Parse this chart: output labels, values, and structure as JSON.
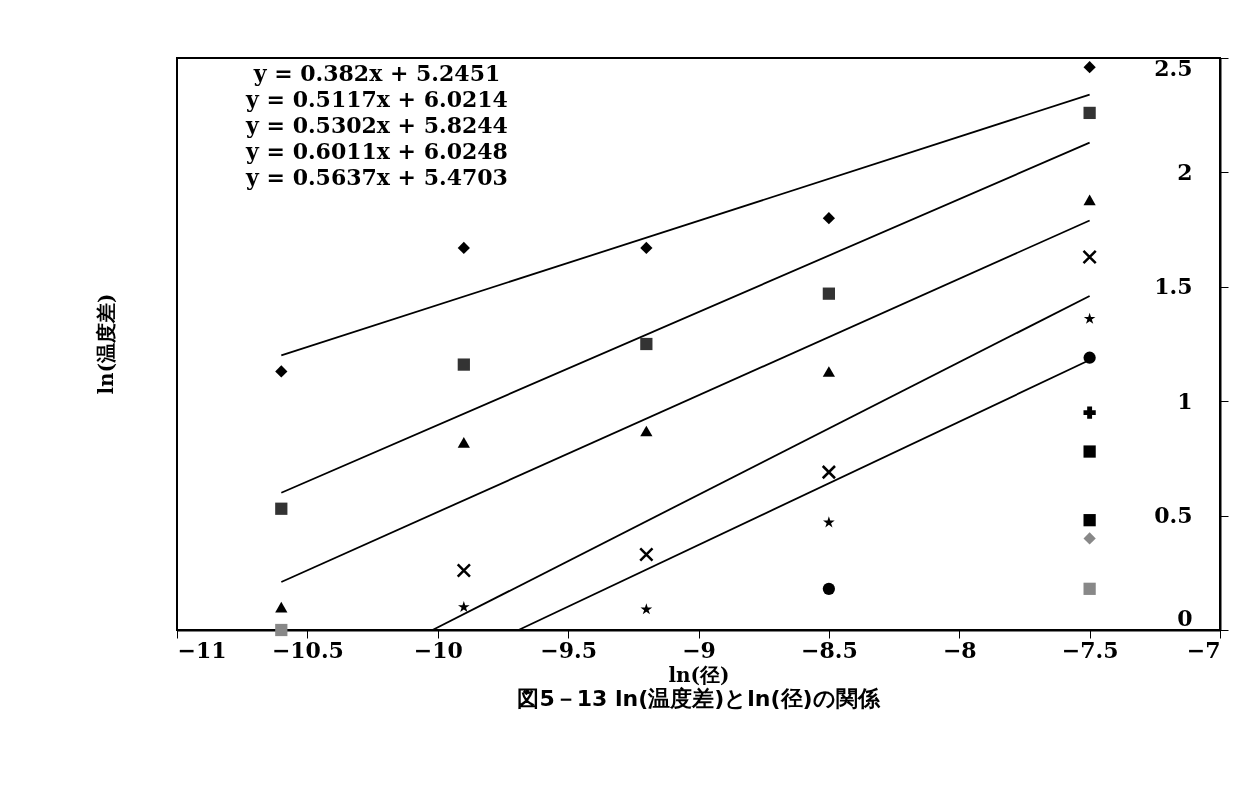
{
  "chart_data": {
    "type": "scatter",
    "title": "図5－13 ln(温度差)とln(径)の関係",
    "xlabel": "ln(径)",
    "ylabel": "ln(温度差)",
    "xlim": [
      -11,
      -7
    ],
    "xticks": [
      -11,
      -10.5,
      -10,
      -9.5,
      -9,
      -8.5,
      -8,
      -7.5,
      -7
    ],
    "ylim": [
      0,
      2.5
    ],
    "yticks": [
      0,
      0.5,
      1,
      1.5,
      2,
      2.5
    ],
    "grid": false,
    "annotations": [
      "y = 0.382x + 5.2451",
      "y = 0.5117x + 6.0214",
      "y = 0.5302x + 5.8244",
      "y = 0.6011x + 6.0248",
      "y = 0.5637x + 5.4703"
    ],
    "series": [
      {
        "type": "line",
        "color": "#000000",
        "x": [
          -10.6,
          -7.5
        ],
        "values": [
          1.2,
          2.34
        ]
      },
      {
        "type": "line",
        "color": "#000000",
        "x": [
          -10.6,
          -7.5
        ],
        "values": [
          0.6,
          2.13
        ]
      },
      {
        "type": "line",
        "color": "#000000",
        "x": [
          -10.6,
          -7.5
        ],
        "values": [
          0.21,
          1.79
        ]
      },
      {
        "type": "line",
        "color": "#000000",
        "x": [
          -10.02,
          -7.5
        ],
        "values": [
          0,
          1.46
        ]
      },
      {
        "type": "line",
        "color": "#000000",
        "x": [
          -9.69,
          -7.5
        ],
        "values": [
          0,
          1.18
        ]
      },
      {
        "marker": "diamond",
        "color": "#000000",
        "x": [
          -10.6,
          -9.9,
          -9.2,
          -8.5,
          -7.5
        ],
        "values": [
          1.13,
          1.67,
          1.67,
          1.8,
          2.46
        ]
      },
      {
        "marker": "square",
        "color": "#333333",
        "x": [
          -10.6,
          -9.9,
          -9.2,
          -8.5,
          -7.5
        ],
        "values": [
          0.53,
          1.16,
          1.25,
          1.47,
          2.26
        ]
      },
      {
        "marker": "triangle",
        "color": "#000000",
        "x": [
          -10.6,
          -9.9,
          -9.2,
          -8.5,
          -7.5
        ],
        "values": [
          0.1,
          0.82,
          0.87,
          1.13,
          1.88
        ]
      },
      {
        "marker": "x",
        "color": "#000000",
        "x": [
          -9.9,
          -9.2,
          -8.5,
          -7.5
        ],
        "values": [
          0.26,
          0.33,
          0.69,
          1.63
        ]
      },
      {
        "marker": "star",
        "color": "#000000",
        "x": [
          -9.9,
          -9.2,
          -8.5,
          -7.5
        ],
        "values": [
          0.1,
          0.09,
          0.47,
          1.36
        ]
      },
      {
        "marker": "circle",
        "color": "#000000",
        "x": [
          -8.5,
          -7.5
        ],
        "values": [
          0.18,
          1.19
        ]
      },
      {
        "marker": "cross",
        "color": "#000000",
        "x": [
          -7.5
        ],
        "values": [
          0.95
        ]
      },
      {
        "marker": "square",
        "color": "#000000",
        "x": [
          -7.5
        ],
        "values": [
          0.78
        ]
      },
      {
        "marker": "square",
        "color": "#000000",
        "x": [
          -7.5
        ],
        "values": [
          0.48
        ]
      },
      {
        "marker": "diamond",
        "color": "#888888",
        "x": [
          -7.5
        ],
        "values": [
          0.4
        ]
      },
      {
        "marker": "square",
        "color": "#888888",
        "x": [
          -10.6,
          -7.5
        ],
        "values": [
          0,
          0.18
        ]
      }
    ]
  }
}
